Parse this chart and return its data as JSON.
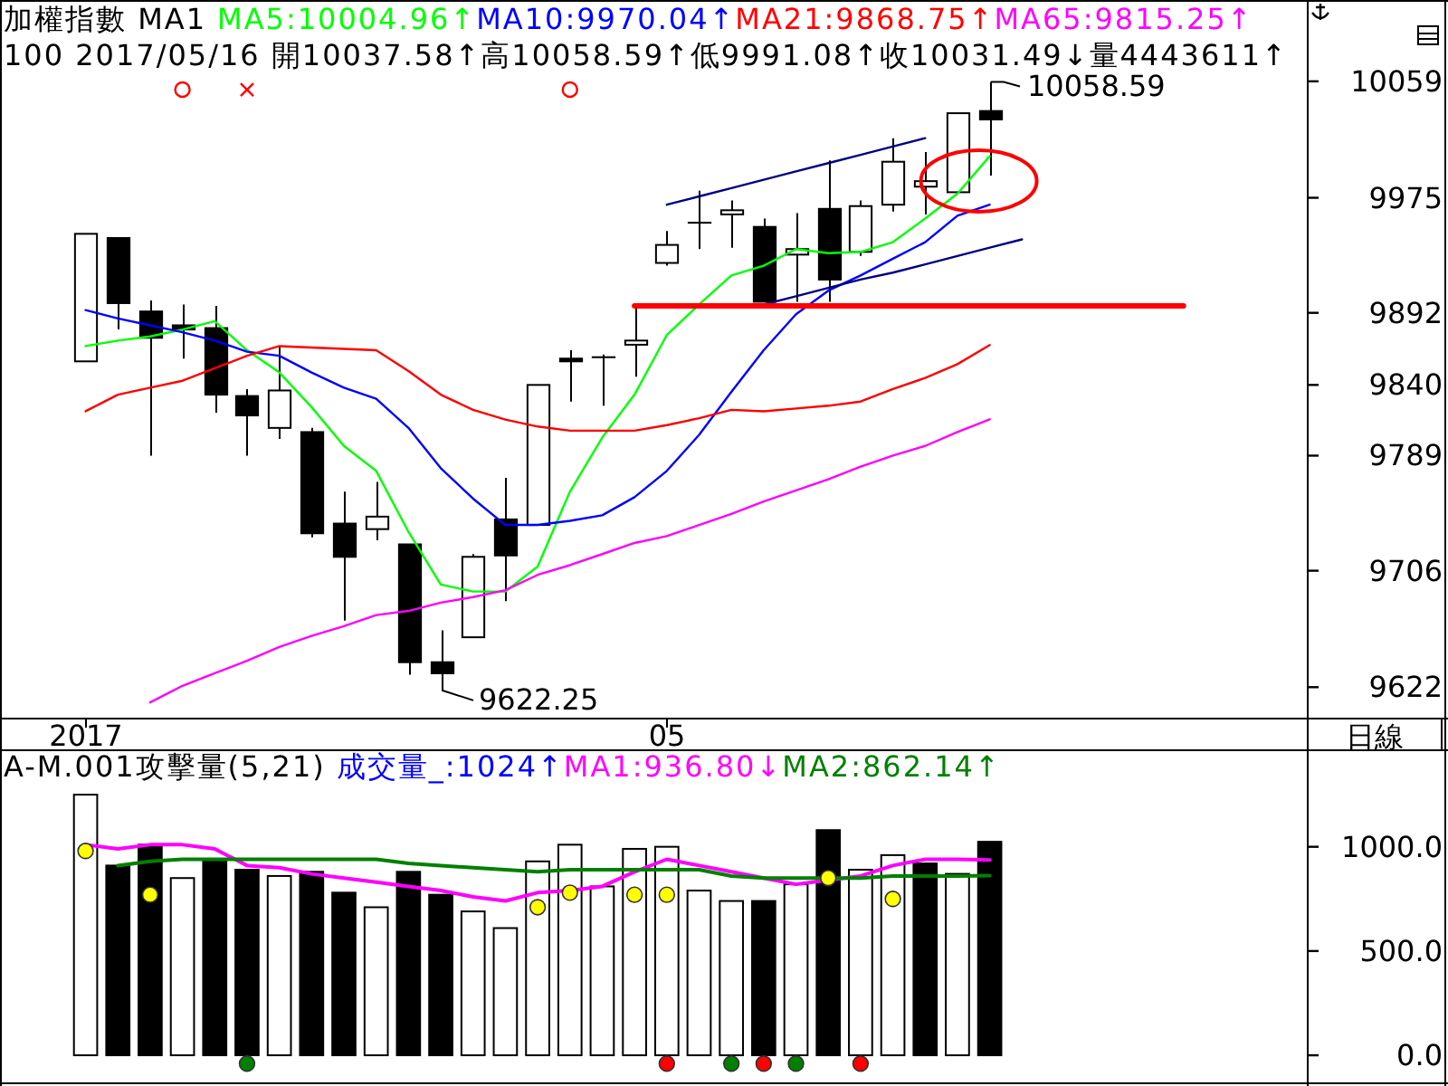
{
  "chart_data": [
    {
      "type": "candlestick",
      "title": "加權指數 MA1",
      "subtitle": "100 2017/05/16 開10037.58↑高10058.59↑低9991.08↑收10031.49↓量4443611↑",
      "categories": [
        "2017",
        null,
        null,
        null,
        null,
        null,
        null,
        null,
        null,
        null,
        null,
        null,
        null,
        null,
        null,
        null,
        null,
        null,
        "05",
        null,
        null,
        null,
        null,
        null,
        null,
        null,
        null,
        null,
        null,
        null,
        null,
        null,
        null,
        null,
        null
      ],
      "ohlc": [
        [
          9857,
          9949,
          9857,
          9949
        ],
        [
          9946,
          9946,
          9880,
          9899
        ],
        [
          9893,
          9901,
          9789,
          9874
        ],
        [
          9883,
          9898,
          9859,
          9880
        ],
        [
          9881,
          9897,
          9820,
          9833
        ],
        [
          9832,
          9837,
          9789,
          9818
        ],
        [
          9809,
          9868,
          9801,
          9836
        ],
        [
          9806,
          9809,
          9730,
          9733
        ],
        [
          9740,
          9763,
          9670,
          9716
        ],
        [
          9736,
          9770,
          9728,
          9745
        ],
        [
          9725,
          9725,
          9631,
          9640
        ],
        [
          9640,
          9663,
          9622.25,
          9632
        ],
        [
          9658,
          9718,
          9658,
          9716
        ],
        [
          9743,
          9773,
          9684,
          9717
        ],
        [
          9739,
          9840,
          9739,
          9840
        ],
        [
          9859,
          9865,
          9828,
          9857
        ],
        [
          9860,
          9862,
          9825,
          9860
        ],
        [
          9869,
          9897,
          9846,
          9872
        ],
        [
          9928,
          9951,
          9926,
          9941
        ],
        [
          9957,
          9980,
          9938,
          9957
        ],
        [
          9963,
          9973,
          9939,
          9966
        ],
        [
          9954,
          9960,
          9900,
          9900
        ],
        [
          9934,
          9964,
          9900,
          9938
        ],
        [
          9967,
          10002,
          9900,
          9916
        ],
        [
          9936,
          9973,
          9933,
          9969
        ],
        [
          9970,
          10018,
          9965,
          10001
        ],
        [
          9983,
          10008,
          9963,
          9987
        ],
        [
          9979,
          10036,
          9979,
          10036
        ],
        [
          10037.58,
          10058.59,
          9991.08,
          10031.49
        ],
        null,
        null,
        null,
        null,
        null,
        null
      ],
      "series": [
        {
          "name": "MA5:10004.96↑",
          "type": "line",
          "color": "#00ff00",
          "values": [
            9868,
            9872,
            9875,
            9880,
            9886,
            9865,
            9849,
            9824,
            9796,
            9778,
            9734,
            9696,
            9691,
            9691,
            9709,
            9763,
            9802,
            9833,
            9876,
            9898,
            9919,
            9926,
            9938,
            9935,
            9936,
            9943,
            9960,
            9978,
            10004.96,
            null,
            null,
            null,
            null,
            null,
            null
          ]
        },
        {
          "name": "MA10:9970.04↑",
          "type": "line",
          "color": "#0000ff",
          "values": [
            9894,
            9888,
            9883,
            9878,
            9872,
            9864,
            9861,
            9849,
            9838,
            9830,
            9809,
            9780,
            9758,
            9739,
            9739,
            9742,
            9746,
            9759,
            9778,
            9804,
            9835,
            9865,
            9891,
            9908,
            9919,
            9931,
            9943,
            9962,
            9970.04,
            null,
            null,
            null,
            null,
            null,
            null
          ]
        },
        {
          "name": "MA21:9868.75↑",
          "type": "line",
          "color": "#ff0000",
          "values": [
            9821,
            9833,
            9838,
            9843,
            9852,
            9861,
            9868,
            9867,
            9866,
            9865,
            9850,
            9833,
            9822,
            9815,
            9810,
            9807,
            9807,
            9807,
            9811,
            9816,
            9822,
            9821,
            9823,
            9825,
            9828,
            9837,
            9845,
            9855,
            9868.75,
            null,
            null,
            null,
            null,
            null,
            null
          ]
        },
        {
          "name": "MA65:9815.25↑",
          "type": "line",
          "color": "#ff00ff",
          "values": [
            null,
            null,
            9611,
            9623,
            9632,
            9641,
            9651,
            9659,
            9666,
            9674,
            9677,
            9683,
            9687,
            9692,
            9703,
            9710,
            9718,
            9726,
            9731,
            9739,
            9747,
            9756,
            9764,
            9772,
            9781,
            9789,
            9796,
            9806,
            9815.25,
            null,
            null,
            null,
            null,
            null,
            null
          ]
        },
        {
          "type": "line",
          "color": "#000080",
          "values": [
            null,
            null,
            null,
            null,
            null,
            null,
            null,
            null,
            null,
            null,
            null,
            null,
            null,
            null,
            null,
            null,
            null,
            null,
            9970,
            9976,
            9982,
            9988,
            9994,
            10000,
            10006,
            10012,
            10018,
            null,
            null,
            null,
            null,
            null,
            null,
            null,
            null
          ]
        },
        {
          "type": "line",
          "color": "#000080",
          "values": [
            null,
            null,
            null,
            null,
            null,
            null,
            null,
            null,
            null,
            null,
            null,
            null,
            null,
            null,
            null,
            null,
            null,
            null,
            null,
            null,
            null,
            9898,
            9904,
            9910,
            9916,
            9921,
            9927,
            9933,
            9939,
            9945,
            null,
            null,
            null,
            null,
            null
          ]
        },
        {
          "type": "line",
          "color": "#ff0000",
          "values": [
            null,
            null,
            null,
            null,
            null,
            null,
            null,
            null,
            null,
            null,
            null,
            null,
            null,
            null,
            null,
            null,
            null,
            9897,
            9897,
            9897,
            9897,
            9897,
            9897,
            9897,
            9897,
            9897,
            9897,
            9897,
            9897,
            9897,
            9897,
            9897,
            9897,
            9897,
            9897
          ]
        },
        {
          "type": "scatter",
          "color": "#ff0000",
          "marker": "circle",
          "values": [
            null,
            null,
            null,
            10053,
            null,
            null,
            null,
            null,
            null,
            null,
            null,
            null,
            null,
            null,
            null,
            10053,
            null,
            null,
            null,
            null,
            null,
            null,
            null,
            null,
            null,
            null,
            null,
            null,
            null,
            null,
            null,
            null,
            null,
            null,
            null
          ]
        },
        {
          "type": "scatter",
          "color": "#ff0000",
          "marker": "cross",
          "values": [
            null,
            null,
            null,
            null,
            null,
            10053,
            null,
            null,
            null,
            null,
            null,
            null,
            null,
            null,
            null,
            null,
            null,
            null,
            null,
            null,
            null,
            null,
            null,
            null,
            null,
            null,
            null,
            null,
            null,
            null,
            null,
            null,
            null,
            null,
            null
          ]
        }
      ],
      "ylim": [
        9600,
        10117
      ],
      "yticks": [
        9622,
        9706,
        9789,
        9840,
        9892,
        9975,
        10059
      ],
      "legend": "top",
      "annotations": [
        "10058.59",
        "9622.25",
        "日線"
      ]
    },
    {
      "type": "bar",
      "title": "A-M.001攻擊量(5,21)",
      "subtitle": "成交量_:1024↑",
      "categories": [
        null,
        null,
        null,
        null,
        null,
        null,
        null,
        null,
        null,
        null,
        null,
        null,
        null,
        null,
        null,
        null,
        null,
        null,
        null,
        null,
        null,
        null,
        null,
        null,
        null,
        null,
        null,
        null,
        null,
        null,
        null,
        null,
        null,
        null,
        null
      ],
      "series": [
        {
          "type": "bar",
          "colors": [
            "#ffffff",
            "#000000",
            "#000000",
            "#ffffff",
            "#000000",
            "#000000",
            "#ffffff",
            "#000000",
            "#000000",
            "#ffffff",
            "#000000",
            "#000000",
            "#ffffff",
            "#ffffff",
            "#ffffff",
            "#ffffff",
            "#ffffff",
            "#ffffff",
            "#ffffff",
            "#ffffff",
            "#ffffff",
            "#000000",
            "#ffffff",
            "#000000",
            "#ffffff",
            "#ffffff",
            "#000000",
            "#ffffff",
            "#000000",
            null,
            null,
            null,
            null,
            null,
            null
          ],
          "values": [
            1250,
            910,
            1010,
            850,
            930,
            890,
            860,
            880,
            780,
            710,
            880,
            770,
            690,
            610,
            930,
            1010,
            810,
            990,
            1000,
            790,
            740,
            740,
            820,
            1080,
            890,
            960,
            920,
            870,
            1024,
            null,
            null,
            null,
            null,
            null,
            null
          ]
        },
        {
          "name": "MA1:936.80↓",
          "type": "line",
          "color": "#ff00ff",
          "values": [
            1010,
            990,
            1010,
            1010,
            990,
            910,
            900,
            870,
            850,
            830,
            810,
            790,
            760,
            740,
            780,
            790,
            810,
            880,
            940,
            910,
            880,
            850,
            820,
            840,
            860,
            910,
            940,
            940,
            936.8,
            null,
            null,
            null,
            null,
            null,
            null
          ]
        },
        {
          "name": "MA2:862.14↑",
          "type": "line",
          "color": "#008000",
          "values": [
            null,
            910,
            930,
            940,
            940,
            940,
            940,
            940,
            940,
            940,
            920,
            910,
            900,
            890,
            880,
            890,
            890,
            890,
            890,
            890,
            860,
            850,
            850,
            850,
            850,
            860,
            860,
            860,
            862.14,
            null,
            null,
            null,
            null,
            null,
            null
          ]
        },
        {
          "type": "scatter",
          "color": "#ffff00",
          "marker": "circle",
          "values": [
            980,
            null,
            770,
            null,
            null,
            null,
            null,
            null,
            null,
            null,
            null,
            null,
            null,
            null,
            710,
            780,
            null,
            770,
            770,
            null,
            null,
            null,
            null,
            850,
            null,
            750,
            null,
            null,
            null,
            null,
            null,
            null,
            null,
            null,
            null
          ]
        },
        {
          "type": "scatter",
          "color": "#008000",
          "marker": "circle",
          "values": [
            null,
            null,
            null,
            null,
            null,
            -40,
            null,
            null,
            null,
            null,
            null,
            null,
            null,
            null,
            null,
            null,
            null,
            null,
            null,
            null,
            -40,
            null,
            -40,
            null,
            null,
            null,
            null,
            null,
            null,
            null,
            null,
            null,
            null,
            null,
            null
          ]
        },
        {
          "type": "scatter",
          "color": "#ff0000",
          "marker": "circle",
          "values": [
            null,
            null,
            null,
            null,
            null,
            null,
            null,
            null,
            null,
            null,
            null,
            null,
            null,
            null,
            null,
            null,
            null,
            null,
            -40,
            null,
            null,
            -40,
            null,
            null,
            -40,
            null,
            null,
            null,
            null,
            null,
            null,
            null,
            null,
            null,
            null
          ]
        }
      ],
      "ylim": [
        -130,
        1463
      ],
      "yticks": [
        {
          "value": 0,
          "label": "0.0"
        },
        {
          "value": 500,
          "label": "500.0"
        },
        {
          "value": 1000,
          "label": "1000.0"
        }
      ],
      "tick_labels": "y",
      "legend": "top"
    }
  ]
}
